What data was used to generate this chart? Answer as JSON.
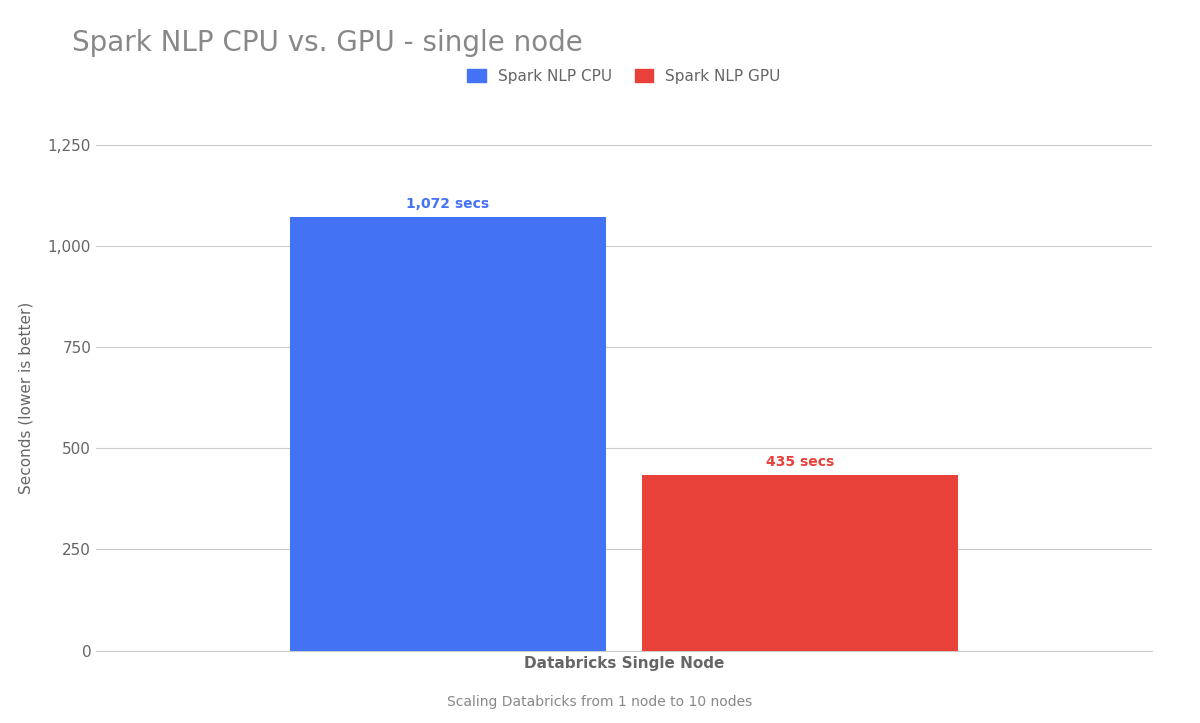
{
  "title": "Spark NLP CPU vs. GPU - single node",
  "xlabel": "Databricks Single Node",
  "ylabel": "Seconds (lower is better)",
  "footnote": "Scaling Databricks from 1 node to 10 nodes",
  "categories": [
    "Spark NLP CPU",
    "Spark NLP GPU"
  ],
  "values": [
    1072,
    435
  ],
  "bar_colors": [
    "#4472F5",
    "#E8413A"
  ],
  "label_colors": [
    "#4472F5",
    "#E8413A"
  ],
  "bar_labels": [
    "1,072 secs",
    "435 secs"
  ],
  "legend_labels": [
    "Spark NLP CPU",
    "Spark NLP GPU"
  ],
  "ylim": [
    0,
    1250
  ],
  "yticks": [
    0,
    250,
    500,
    750,
    1000,
    1250
  ],
  "background_color": "#ffffff",
  "grid_color": "#cccccc",
  "title_color": "#888888",
  "axis_label_color": "#666666",
  "tick_label_color": "#666666",
  "xlabel_color": "#333333",
  "footnote_color": "#888888",
  "title_fontsize": 20,
  "label_fontsize": 11,
  "tick_fontsize": 11,
  "bar_label_fontsize": 10,
  "legend_fontsize": 11,
  "footnote_fontsize": 10
}
